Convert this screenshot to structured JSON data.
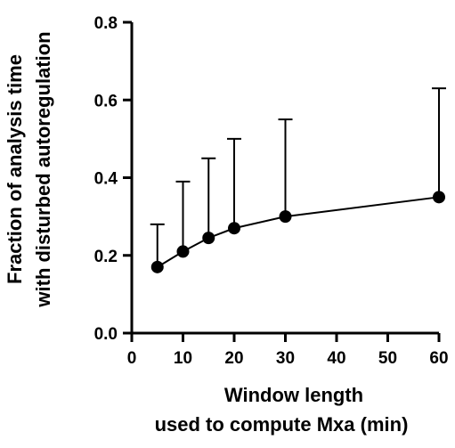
{
  "chart_data": {
    "type": "line",
    "title": "",
    "xlabel_lines": [
      "Window length",
      "used to compute Mxa (min)"
    ],
    "ylabel_lines": [
      "Fraction of analysis time",
      "with disturbed autoregulation"
    ],
    "xlim": [
      0,
      60
    ],
    "ylim": [
      0,
      0.8
    ],
    "x_ticks": [
      0,
      10,
      20,
      30,
      40,
      50,
      60
    ],
    "x_tick_labels": [
      "0",
      "10",
      "20",
      "30",
      "40",
      "50",
      "60"
    ],
    "y_ticks": [
      0.0,
      0.2,
      0.4,
      0.6,
      0.8
    ],
    "y_tick_labels": [
      "0.0",
      "0.2",
      "0.4",
      "0.6",
      "0.8"
    ],
    "grid": false,
    "series": [
      {
        "x": [
          5,
          10,
          15,
          20,
          30,
          60
        ],
        "y": [
          0.17,
          0.21,
          0.245,
          0.27,
          0.3,
          0.35
        ],
        "error_upper": [
          0.28,
          0.39,
          0.45,
          0.5,
          0.55,
          0.63
        ],
        "marker": "circle",
        "color": "#000000"
      }
    ]
  }
}
